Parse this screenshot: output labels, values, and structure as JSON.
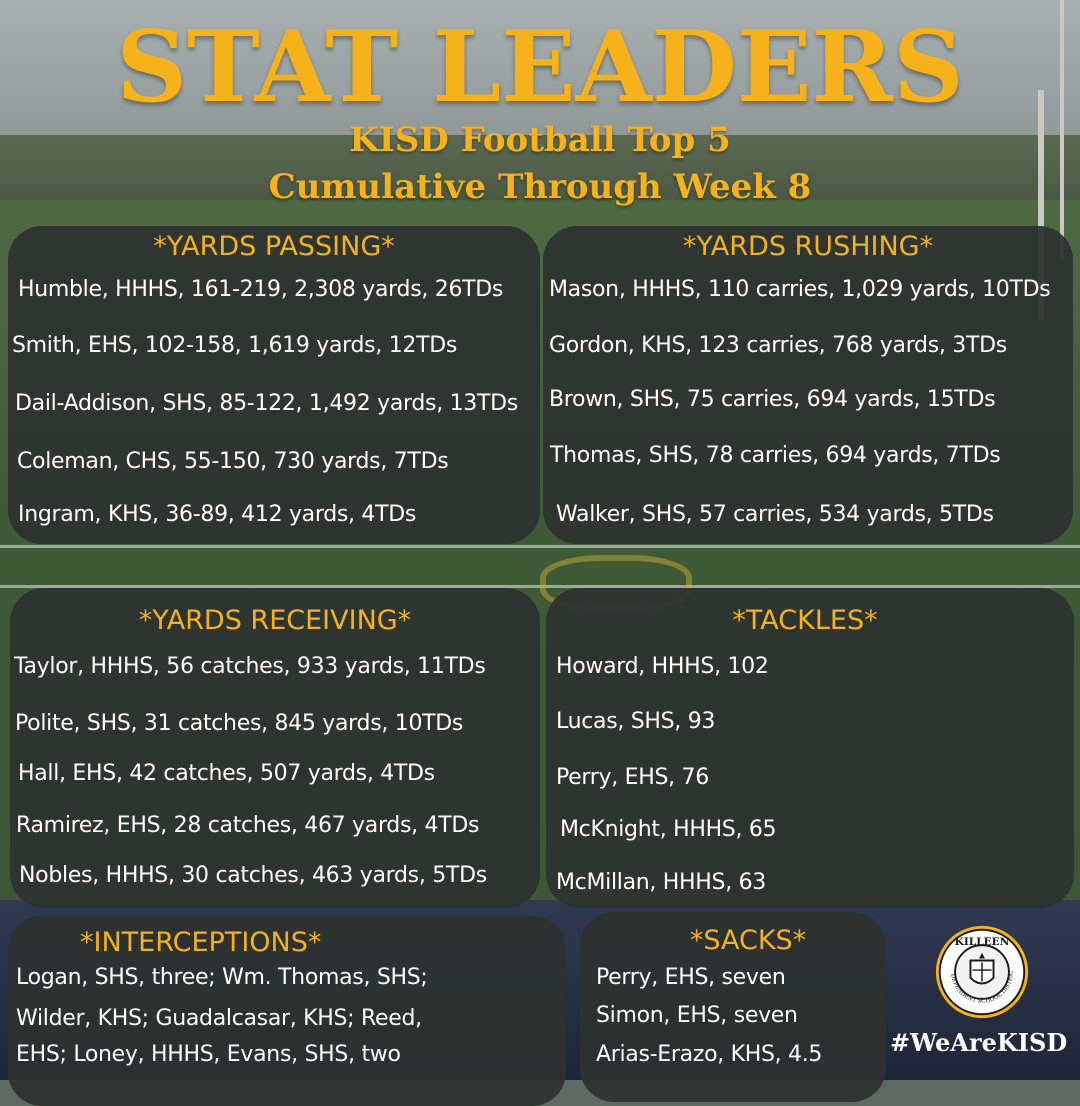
{
  "header": {
    "title": "STAT LEADERS",
    "subtitle_line1": "KISD Football Top 5",
    "subtitle_line2": "Cumulative Through Week 8"
  },
  "passing": {
    "heading": "*YARDS PASSING*",
    "rows": [
      "Humble, HHHS, 161-219, 2,308 yards, 26TDs",
      "Smith, EHS, 102-158, 1,619 yards, 12TDs",
      "Dail-Addison, SHS, 85-122, 1,492 yards, 13TDs",
      "Coleman, CHS, 55-150, 730 yards, 7TDs",
      "Ingram, KHS, 36-89, 412 yards, 4TDs"
    ]
  },
  "rushing": {
    "heading": "*YARDS RUSHING*",
    "rows": [
      "Mason, HHHS, 110 carries, 1,029 yards, 10TDs",
      "Gordon, KHS, 123 carries, 768 yards, 3TDs",
      "Brown, SHS, 75 carries, 694 yards, 15TDs",
      "Thomas, SHS, 78 carries, 694 yards, 7TDs",
      "Walker, SHS, 57 carries, 534 yards, 5TDs"
    ]
  },
  "receiving": {
    "heading": "*YARDS RECEIVING*",
    "rows": [
      "Taylor, HHHS, 56 catches, 933 yards, 11TDs",
      "Polite, SHS, 31 catches, 845 yards, 10TDs",
      "Hall, EHS, 42 catches, 507 yards, 4TDs",
      "Ramirez, EHS, 28 catches, 467 yards, 4TDs",
      "Nobles, HHHS, 30 catches, 463 yards, 5TDs"
    ]
  },
  "tackles": {
    "heading": "*TACKLES*",
    "rows": [
      "Howard, HHHS, 102",
      "Lucas, SHS, 93",
      "Perry, EHS, 76",
      "McKnight, HHHS, 65",
      "McMillan, HHHS, 63"
    ]
  },
  "interceptions": {
    "heading": "*INTERCEPTIONS*",
    "lines": [
      "Logan, SHS, three; Wm. Thomas, SHS;",
      "Wilder, KHS; Guadalcasar, KHS; Reed,",
      "EHS; Loney, HHHS, Evans, SHS, two"
    ]
  },
  "sacks": {
    "heading": "*SACKS*",
    "rows": [
      "Perry, EHS, seven",
      "Simon, EHS, seven",
      "Arias-Erazo, KHS, 4.5"
    ]
  },
  "footer": {
    "hashtag": "#WeAreKISD",
    "seal_top_text": "KILLEEN",
    "seal_ring_text": "INDEPENDENT SCHOOL DISTRICT"
  },
  "colors": {
    "accent": "#f6b21b",
    "panel": "#2d312f",
    "text": "#ffffff"
  }
}
